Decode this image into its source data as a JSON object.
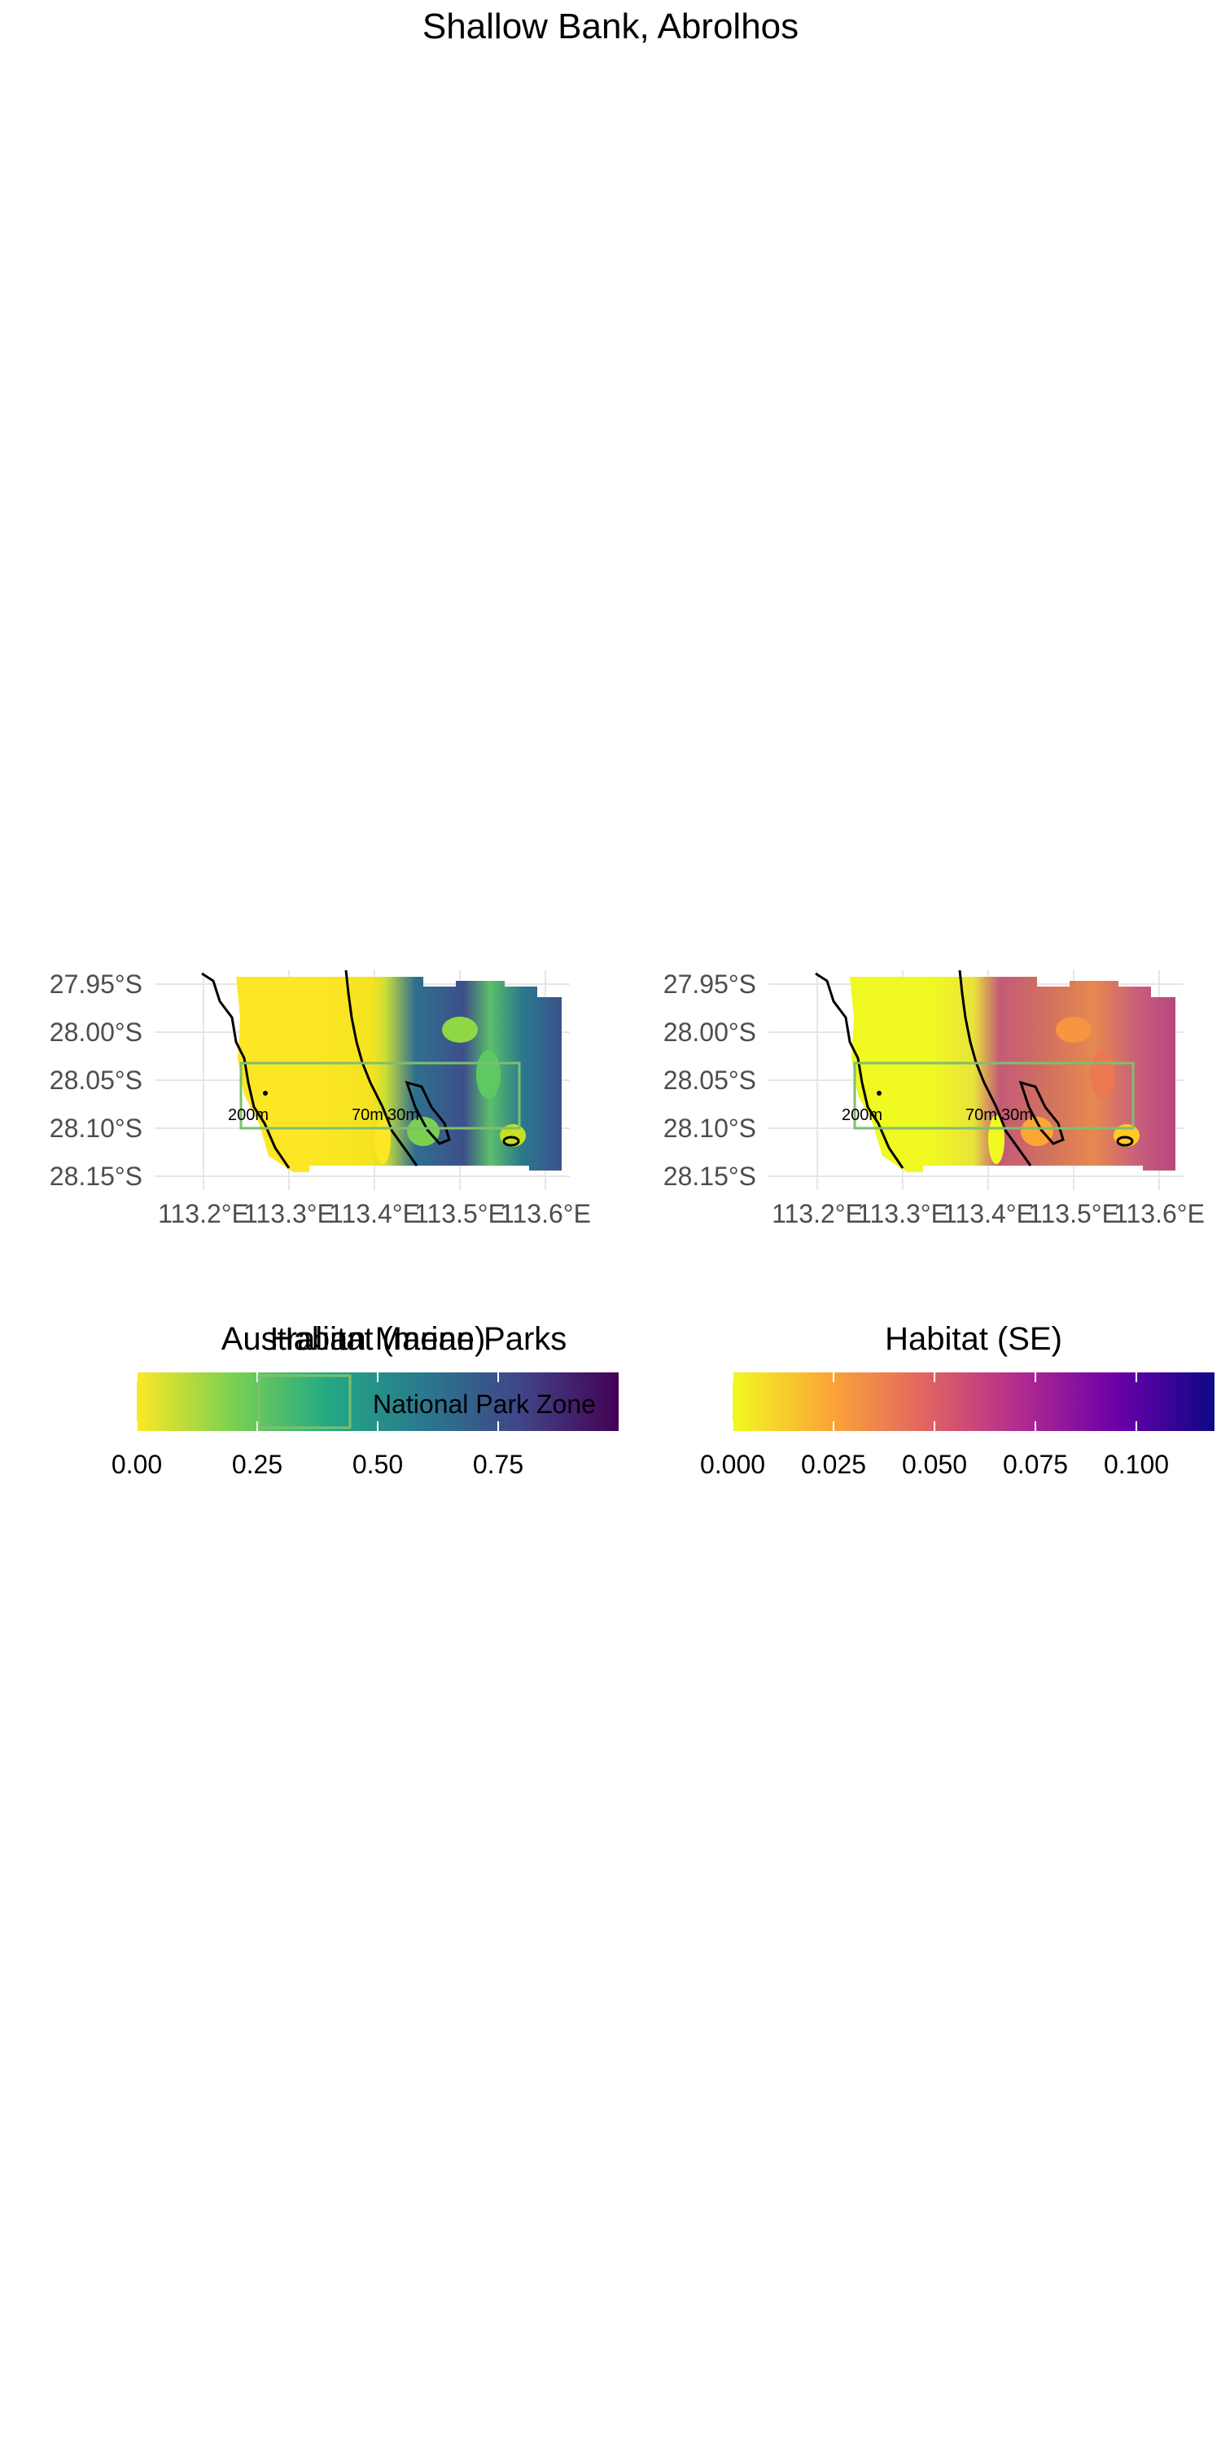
{
  "title": "Shallow Bank, Abrolhos",
  "panels": [
    {
      "lat_ticks": [
        "27.95°S",
        "28.00°S",
        "28.05°S",
        "28.10°S",
        "28.15°S"
      ],
      "lon_ticks": [
        "113.2°E",
        "113.3°E",
        "113.4°E",
        "113.5°E",
        "113.6°E"
      ],
      "depth_labels": [
        "200m",
        "70m",
        "30m"
      ],
      "colormap": "viridis"
    },
    {
      "lat_ticks": [
        "27.95°S",
        "28.00°S",
        "28.05°S",
        "28.10°S",
        "28.15°S"
      ],
      "lon_ticks": [
        "113.2°E",
        "113.3°E",
        "113.4°E",
        "113.5°E",
        "113.6°E"
      ],
      "depth_labels": [
        "200m",
        "70m",
        "30m"
      ],
      "colormap": "plasma"
    }
  ],
  "legends": {
    "mean": {
      "title": "Habitat (mean)",
      "ticks": [
        "0.00",
        "0.25",
        "0.50",
        "0.75"
      ],
      "colors": [
        "#fde725",
        "#7ad151",
        "#22a884",
        "#2a788e",
        "#414487",
        "#440154"
      ]
    },
    "se": {
      "title": "Habitat (SE)",
      "ticks": [
        "0.000",
        "0.025",
        "0.050",
        "0.075",
        "0.100"
      ],
      "colors": [
        "#f0f921",
        "#fca636",
        "#e16462",
        "#b12a90",
        "#6a00a8",
        "#0d0887"
      ]
    },
    "parks": {
      "title": "Australian Marine Parks",
      "entry": "National Park Zone",
      "color": "#7fbf6e"
    }
  },
  "colors": {
    "park_outline": "#7fbf6e",
    "contour": "#000000",
    "grid": "#e6e6e6",
    "tick_text": "#4d4d4d"
  }
}
